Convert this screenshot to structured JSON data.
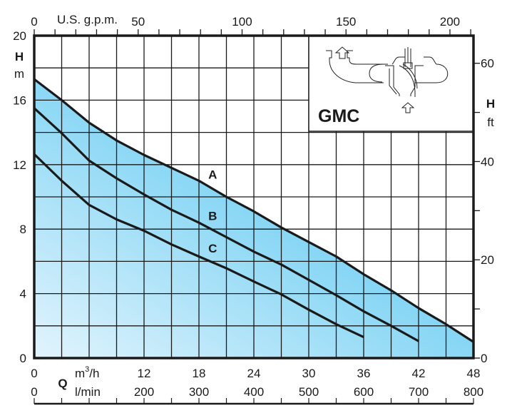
{
  "chart_data": {
    "type": "line",
    "model_label": "GMC",
    "x_axis_primary": {
      "symbol": "Q",
      "unit": "m3/h",
      "unit_main": "m",
      "unit_sup": "3",
      "unit_tail": "/h",
      "range": [
        0,
        48
      ],
      "ticks": [
        0,
        12,
        18,
        24,
        30,
        36,
        42,
        48
      ],
      "grid_step": 3
    },
    "x_axis_secondary": {
      "unit": "l/min",
      "range": [
        0,
        800
      ],
      "ticks": [
        0,
        200,
        300,
        400,
        500,
        600,
        700,
        800
      ]
    },
    "x_axis_top": {
      "unit": "U.S. g.p.m.",
      "ticks": [
        0,
        50,
        100,
        150,
        200
      ],
      "minor_step": 10
    },
    "y_axis_left": {
      "symbol": "H",
      "unit": "m",
      "range": [
        0,
        20
      ],
      "ticks": [
        0,
        4,
        8,
        12,
        16,
        20
      ],
      "grid_step": 2
    },
    "y_axis_right": {
      "symbol": "H",
      "unit": "ft",
      "ticks": [
        0,
        20,
        40,
        60
      ],
      "minor_step": 10
    },
    "grid": true,
    "fill_colors": [
      "#e2f4fd",
      "#5ec9f1"
    ],
    "line_color": "#1a1a1a",
    "series": [
      {
        "name": "A",
        "x": [
          0,
          3,
          6,
          9,
          12,
          15,
          18,
          21,
          24,
          27,
          30,
          33,
          36,
          39,
          42,
          45,
          48
        ],
        "y": [
          17.3,
          16.0,
          14.6,
          13.5,
          12.6,
          11.8,
          11.0,
          10.0,
          9.1,
          8.1,
          7.2,
          6.3,
          5.2,
          4.2,
          3.1,
          2.1,
          1.0
        ]
      },
      {
        "name": "B",
        "x": [
          0,
          3,
          6,
          9,
          12,
          15,
          18,
          21,
          24,
          27,
          30,
          33,
          36,
          39,
          42
        ],
        "y": [
          15.5,
          13.95,
          12.25,
          11.15,
          10.15,
          9.2,
          8.4,
          7.5,
          6.6,
          5.8,
          4.85,
          3.9,
          2.9,
          2.0,
          1.05
        ]
      },
      {
        "name": "C",
        "x": [
          0,
          3,
          6,
          9,
          12,
          15,
          18,
          21,
          24,
          27,
          30,
          33,
          36
        ],
        "y": [
          12.65,
          11.0,
          9.5,
          8.6,
          7.9,
          7.05,
          6.3,
          5.57,
          4.75,
          3.95,
          3.0,
          2.1,
          1.3
        ]
      }
    ],
    "series_label_at_x": 19.5
  }
}
